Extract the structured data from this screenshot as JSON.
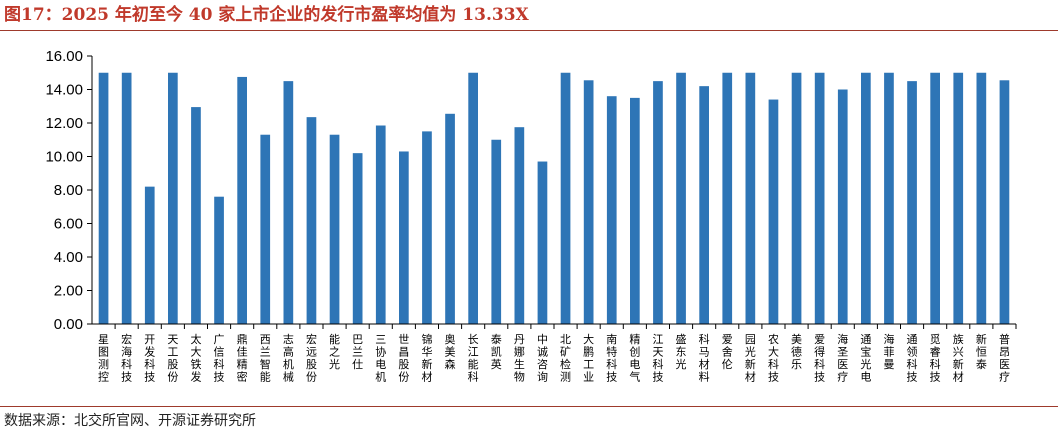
{
  "figure": {
    "title": "图17：2025 年初至今 40 家上市企业的发行市盈率均值为 13.33X",
    "source": "数据来源：北交所官网、开源证券研究所"
  },
  "colors": {
    "bar": "#2e75b6",
    "title": "#c0392b",
    "rule": "#9e3a2c",
    "axis": "#000000"
  },
  "chart_data": {
    "type": "bar",
    "title": "",
    "xlabel": "",
    "ylabel": "",
    "ylim": [
      0,
      16
    ],
    "yticks": [
      "0.00",
      "2.00",
      "4.00",
      "6.00",
      "8.00",
      "10.00",
      "12.00",
      "14.00",
      "16.00"
    ],
    "grid": false,
    "legend": "none",
    "categories": [
      "星图测控",
      "宏海科技",
      "开发科技",
      "天工股份",
      "太大铁发",
      "广信科技",
      "鼎佳精密",
      "西兰智能",
      "志高机械",
      "宏远股份",
      "能之光",
      "巴兰仕",
      "三协电机",
      "世昌股份",
      "锦华新材",
      "奥美森",
      "长江能科",
      "泰凯英",
      "丹娜生物",
      "中诚咨询",
      "北矿检测",
      "大鹏工业",
      "南特科技",
      "精创电气",
      "江天科技",
      "盛东光",
      "科马材料",
      "爱舍伦",
      "园光新材",
      "农大科技",
      "美德乐",
      "爱得科技",
      "海圣医疗",
      "通宝光电",
      "海菲曼",
      "通领科技",
      "觅睿科技",
      "族兴新材",
      "新恒泰",
      "普昂医疗"
    ],
    "values": [
      15.0,
      15.0,
      8.2,
      15.0,
      12.95,
      7.6,
      14.75,
      11.3,
      14.5,
      12.35,
      11.3,
      10.2,
      11.85,
      10.3,
      11.5,
      12.55,
      15.0,
      11.0,
      11.75,
      9.7,
      15.0,
      14.55,
      13.6,
      13.5,
      14.5,
      15.0,
      14.2,
      15.0,
      15.0,
      13.4,
      15.0,
      15.0,
      14.0,
      15.0,
      15.0,
      14.5,
      15.0,
      15.0,
      15.0,
      14.55
    ]
  }
}
